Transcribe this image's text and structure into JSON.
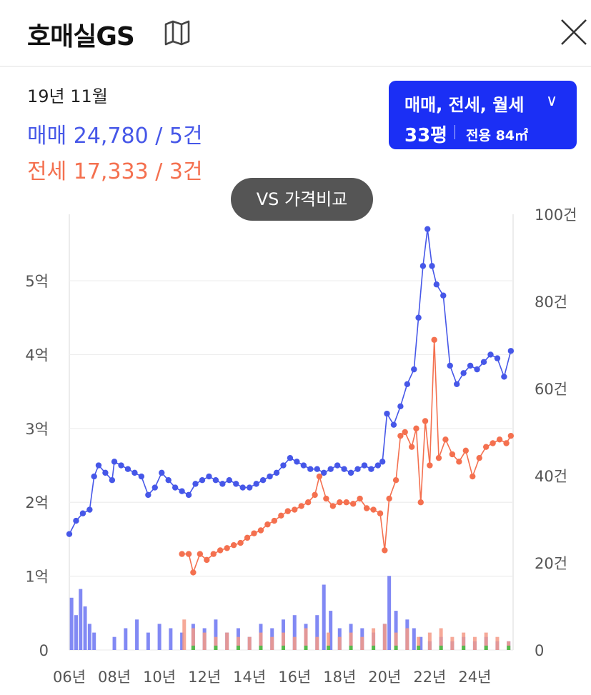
{
  "header": {
    "title": "호매실GS",
    "map_icon": "map-icon",
    "close_icon": "close-icon"
  },
  "summary": {
    "date": "19년 11월",
    "sale_text": "매매 24,780 / 5건",
    "jeonse_text": "전세 17,333 / 3건"
  },
  "filter": {
    "types": "매매, 전세, 월세",
    "chevron": "∨",
    "size": "33평",
    "area": "전용 84㎡"
  },
  "vs_button": "VS 가격비교",
  "colors": {
    "sale": "#4657e8",
    "jeonse": "#f4704f",
    "monthly_volume": "#3fbf3f",
    "filter_bg": "#1b2ff5"
  },
  "chart_data": {
    "type": "line",
    "x_labels": [
      "06년",
      "08년",
      "10년",
      "12년",
      "14년",
      "16년",
      "18년",
      "20년",
      "22년",
      "24년"
    ],
    "x_range": [
      2006,
      2025.7
    ],
    "left_axis": {
      "ticks": [
        "0",
        "1억",
        "2억",
        "3억",
        "4억",
        "5억"
      ],
      "range": [
        0,
        5.9
      ],
      "unit": "억"
    },
    "right_axis": {
      "ticks": [
        "0",
        "20건",
        "40건",
        "60건",
        "80건",
        "100건"
      ],
      "range": [
        0,
        100
      ],
      "unit": "건"
    },
    "grid": true,
    "series": [
      {
        "color": "#4657e8",
        "axis": "left",
        "points": [
          [
            2006.0,
            1.57
          ],
          [
            2006.3,
            1.75
          ],
          [
            2006.6,
            1.85
          ],
          [
            2006.9,
            1.9
          ],
          [
            2007.1,
            2.35
          ],
          [
            2007.3,
            2.5
          ],
          [
            2007.6,
            2.4
          ],
          [
            2007.9,
            2.3
          ],
          [
            2008.0,
            2.55
          ],
          [
            2008.3,
            2.5
          ],
          [
            2008.6,
            2.45
          ],
          [
            2008.9,
            2.4
          ],
          [
            2009.2,
            2.35
          ],
          [
            2009.5,
            2.1
          ],
          [
            2009.8,
            2.2
          ],
          [
            2010.1,
            2.4
          ],
          [
            2010.4,
            2.3
          ],
          [
            2010.7,
            2.2
          ],
          [
            2011.0,
            2.15
          ],
          [
            2011.3,
            2.1
          ],
          [
            2011.6,
            2.25
          ],
          [
            2011.9,
            2.3
          ],
          [
            2012.2,
            2.35
          ],
          [
            2012.5,
            2.3
          ],
          [
            2012.8,
            2.25
          ],
          [
            2013.1,
            2.3
          ],
          [
            2013.4,
            2.25
          ],
          [
            2013.7,
            2.2
          ],
          [
            2014.0,
            2.2
          ],
          [
            2014.3,
            2.25
          ],
          [
            2014.6,
            2.3
          ],
          [
            2014.9,
            2.35
          ],
          [
            2015.2,
            2.4
          ],
          [
            2015.5,
            2.5
          ],
          [
            2015.8,
            2.6
          ],
          [
            2016.1,
            2.55
          ],
          [
            2016.4,
            2.5
          ],
          [
            2016.7,
            2.45
          ],
          [
            2017.0,
            2.45
          ],
          [
            2017.3,
            2.4
          ],
          [
            2017.6,
            2.45
          ],
          [
            2017.9,
            2.5
          ],
          [
            2018.2,
            2.45
          ],
          [
            2018.5,
            2.4
          ],
          [
            2018.8,
            2.45
          ],
          [
            2019.1,
            2.5
          ],
          [
            2019.4,
            2.45
          ],
          [
            2019.7,
            2.5
          ],
          [
            2019.9,
            2.55
          ],
          [
            2020.1,
            3.2
          ],
          [
            2020.4,
            3.05
          ],
          [
            2020.7,
            3.3
          ],
          [
            2021.0,
            3.6
          ],
          [
            2021.3,
            3.8
          ],
          [
            2021.5,
            4.5
          ],
          [
            2021.7,
            5.2
          ],
          [
            2021.9,
            5.7
          ],
          [
            2022.1,
            5.2
          ],
          [
            2022.3,
            4.95
          ],
          [
            2022.6,
            4.8
          ],
          [
            2022.9,
            3.85
          ],
          [
            2023.2,
            3.6
          ],
          [
            2023.5,
            3.75
          ],
          [
            2023.8,
            3.85
          ],
          [
            2024.1,
            3.8
          ],
          [
            2024.4,
            3.9
          ],
          [
            2024.7,
            4.0
          ],
          [
            2025.0,
            3.95
          ],
          [
            2025.3,
            3.7
          ],
          [
            2025.6,
            4.05
          ]
        ]
      },
      {
        "color": "#f4704f",
        "axis": "left",
        "points": [
          [
            2011.0,
            1.3
          ],
          [
            2011.3,
            1.3
          ],
          [
            2011.5,
            1.05
          ],
          [
            2011.8,
            1.3
          ],
          [
            2012.1,
            1.22
          ],
          [
            2012.4,
            1.3
          ],
          [
            2012.7,
            1.35
          ],
          [
            2013.0,
            1.38
          ],
          [
            2013.3,
            1.42
          ],
          [
            2013.6,
            1.45
          ],
          [
            2013.9,
            1.52
          ],
          [
            2014.2,
            1.58
          ],
          [
            2014.5,
            1.62
          ],
          [
            2014.8,
            1.7
          ],
          [
            2015.1,
            1.75
          ],
          [
            2015.4,
            1.82
          ],
          [
            2015.7,
            1.88
          ],
          [
            2016.0,
            1.9
          ],
          [
            2016.3,
            1.95
          ],
          [
            2016.6,
            2.0
          ],
          [
            2016.9,
            2.1
          ],
          [
            2017.1,
            2.35
          ],
          [
            2017.4,
            2.05
          ],
          [
            2017.7,
            1.95
          ],
          [
            2018.0,
            2.0
          ],
          [
            2018.3,
            2.0
          ],
          [
            2018.6,
            1.98
          ],
          [
            2018.9,
            2.05
          ],
          [
            2019.2,
            1.92
          ],
          [
            2019.5,
            1.9
          ],
          [
            2019.8,
            1.85
          ],
          [
            2020.0,
            1.35
          ],
          [
            2020.2,
            2.05
          ],
          [
            2020.5,
            2.3
          ],
          [
            2020.7,
            2.9
          ],
          [
            2020.9,
            2.95
          ],
          [
            2021.2,
            2.75
          ],
          [
            2021.4,
            3.0
          ],
          [
            2021.6,
            2.0
          ],
          [
            2021.8,
            3.1
          ],
          [
            2022.0,
            2.5
          ],
          [
            2022.2,
            4.2
          ],
          [
            2022.4,
            2.6
          ],
          [
            2022.7,
            2.85
          ],
          [
            2023.0,
            2.65
          ],
          [
            2023.3,
            2.55
          ],
          [
            2023.6,
            2.7
          ],
          [
            2023.9,
            2.35
          ],
          [
            2024.2,
            2.6
          ],
          [
            2024.5,
            2.75
          ],
          [
            2024.8,
            2.8
          ],
          [
            2025.1,
            2.85
          ],
          [
            2025.4,
            2.8
          ],
          [
            2025.6,
            2.9
          ]
        ]
      }
    ],
    "volume_series": [
      {
        "color": "#6b74f2",
        "axis": "right",
        "points": [
          [
            2006.1,
            12
          ],
          [
            2006.3,
            8
          ],
          [
            2006.5,
            14
          ],
          [
            2006.7,
            10
          ],
          [
            2006.9,
            6
          ],
          [
            2007.1,
            4
          ],
          [
            2008.0,
            3
          ],
          [
            2008.5,
            5
          ],
          [
            2009.0,
            7
          ],
          [
            2009.5,
            4
          ],
          [
            2010.0,
            6
          ],
          [
            2010.5,
            5
          ],
          [
            2011.0,
            4
          ],
          [
            2011.5,
            6
          ],
          [
            2012.0,
            5
          ],
          [
            2012.5,
            7
          ],
          [
            2013.0,
            4
          ],
          [
            2013.5,
            5
          ],
          [
            2014.0,
            3
          ],
          [
            2014.5,
            6
          ],
          [
            2015.0,
            5
          ],
          [
            2015.5,
            7
          ],
          [
            2016.0,
            8
          ],
          [
            2016.5,
            6
          ],
          [
            2017.0,
            8
          ],
          [
            2017.3,
            15
          ],
          [
            2017.6,
            9
          ],
          [
            2018.0,
            5
          ],
          [
            2018.5,
            6
          ],
          [
            2019.0,
            5
          ],
          [
            2019.5,
            4
          ],
          [
            2020.0,
            6
          ],
          [
            2020.2,
            17
          ],
          [
            2020.5,
            9
          ],
          [
            2021.0,
            7
          ],
          [
            2021.3,
            5
          ],
          [
            2021.6,
            3
          ],
          [
            2022.0,
            2
          ],
          [
            2022.5,
            3
          ],
          [
            2023.0,
            2
          ],
          [
            2023.5,
            3
          ],
          [
            2024.0,
            2
          ],
          [
            2024.5,
            3
          ],
          [
            2025.0,
            2
          ],
          [
            2025.5,
            2
          ]
        ]
      },
      {
        "color": "#f49a86",
        "axis": "right",
        "points": [
          [
            2011.1,
            7
          ],
          [
            2011.5,
            5
          ],
          [
            2012.0,
            4
          ],
          [
            2012.5,
            3
          ],
          [
            2013.0,
            4
          ],
          [
            2013.5,
            3
          ],
          [
            2014.0,
            3
          ],
          [
            2014.5,
            4
          ],
          [
            2015.0,
            3
          ],
          [
            2015.5,
            4
          ],
          [
            2016.0,
            3
          ],
          [
            2016.5,
            5
          ],
          [
            2017.0,
            3
          ],
          [
            2017.5,
            4
          ],
          [
            2018.0,
            3
          ],
          [
            2018.5,
            4
          ],
          [
            2019.0,
            3
          ],
          [
            2019.5,
            5
          ],
          [
            2020.0,
            6
          ],
          [
            2020.5,
            4
          ],
          [
            2021.0,
            5
          ],
          [
            2021.5,
            3
          ],
          [
            2022.0,
            4
          ],
          [
            2022.5,
            5
          ],
          [
            2023.0,
            3
          ],
          [
            2023.5,
            4
          ],
          [
            2024.0,
            3
          ],
          [
            2024.5,
            4
          ],
          [
            2025.0,
            3
          ],
          [
            2025.5,
            2
          ]
        ]
      },
      {
        "color": "#3fbf3f",
        "axis": "right",
        "points": [
          [
            2011.5,
            1
          ],
          [
            2012.5,
            1
          ],
          [
            2013.5,
            1
          ],
          [
            2014.5,
            1
          ],
          [
            2015.5,
            1
          ],
          [
            2016.5,
            1
          ],
          [
            2017.5,
            1
          ],
          [
            2018.5,
            1
          ],
          [
            2019.5,
            1
          ],
          [
            2020.5,
            1
          ],
          [
            2021.5,
            1
          ],
          [
            2022.5,
            1
          ],
          [
            2023.5,
            1
          ],
          [
            2024.5,
            1
          ],
          [
            2025.5,
            1
          ]
        ]
      }
    ]
  }
}
